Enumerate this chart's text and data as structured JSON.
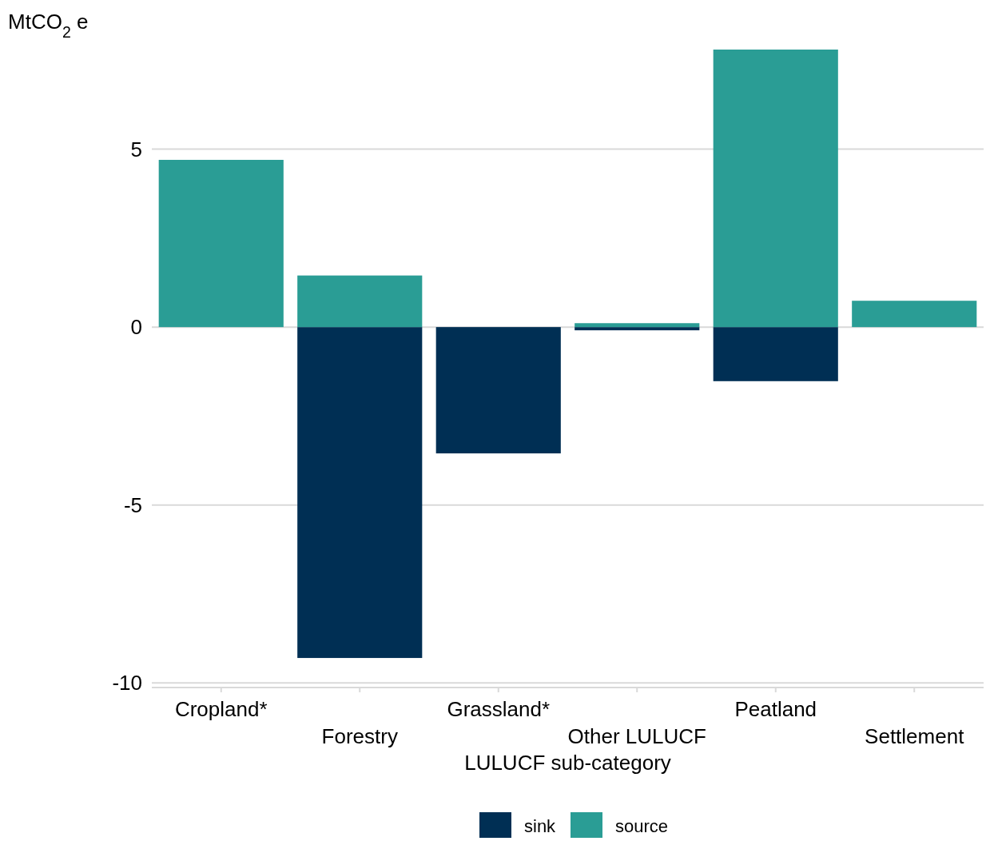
{
  "chart_data": {
    "type": "bar",
    "stacked": true,
    "xlabel": "LULUCF sub-category",
    "ylabel": "MtCO$_{2}$ e",
    "categories": [
      "Cropland*",
      "Forestry",
      "Grassland*",
      "Other LULUCF",
      "Peatland",
      "Settlement"
    ],
    "series": [
      {
        "name": "sink",
        "color": "#002f54",
        "values": [
          null,
          -9.3,
          -3.55,
          -0.09,
          -1.52,
          null
        ]
      },
      {
        "name": "source",
        "color": "#2a9d95",
        "values": [
          4.7,
          1.45,
          null,
          0.11,
          7.8,
          0.74
        ]
      }
    ],
    "ylim": [
      -10.13,
      7.8
    ],
    "yticks": [
      {
        "value": -10,
        "label": "-10"
      },
      {
        "value": -5,
        "label": "-5"
      },
      0,
      5
    ],
    "grid": "y",
    "legend": "bottom"
  }
}
